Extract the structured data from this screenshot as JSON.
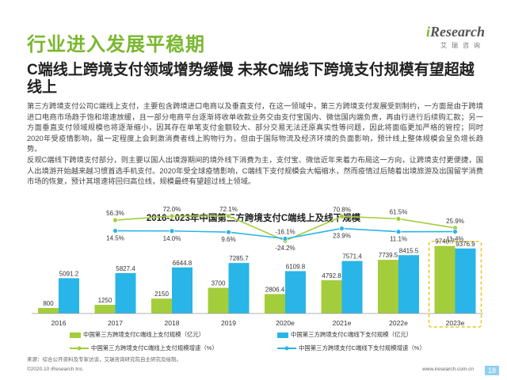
{
  "page_title": "行业进入发展平稳期",
  "logo": {
    "brand_i": "i",
    "brand_rest": "Research",
    "sub": "艾瑞咨询"
  },
  "headline": "C端线上跨境支付领域增势缓慢 未来C端线下跨境支付规模有望超越线上",
  "body_paragraphs": [
    "第三方跨境支付公司C端线上支付，主要包含跨境进口电商以及垂直支付，在这一领域中，第三方跨境支付发展受到制约，一方面是由于跨境进口电商市场趋于饱和增速放缓，且一部分电商平台逐渐将收单收款业务交由支付宝国内、微信国内端负责，再由行进行后续购汇款；另一方面垂直支付领域规模也将逐渐缩小，因其存在单笔支付金额较大、部分交易无法还原真实性等问题，因此将面临更加严格的管控；同时2020年受疫情影响，虽一定程度上会刺激消费者线上购物行为，但由于国际物流及经济环境的负面影响，预计线上整体规模会呈负增长趋势。",
    "反观C端线下跨境支付部分，则主要以国人出境游期间的境外线下消费为主，支付宝、微信近年来着力布局这一方向，让跨境支付更便捷，国人出境游开始越来越习惯首选手机支付。2020年受全球疫情影响，C端线下支付规模会大幅缩水，然而疫情过后随着出境旅游及出国留学消费市场的恢复，预计其增速将回归高位线，规模最终有望超过线上领域。"
  ],
  "colors": {
    "green": "#a3cd3b",
    "blue": "#29b5e8",
    "title_green": "#7ab72f",
    "dashed": "#e8c51b"
  },
  "chart_data": {
    "type": "bar",
    "title": "2016-2023年中国第三方跨境支付C端线上及线下规模",
    "categories": [
      "2016",
      "2017",
      "2018",
      "2019",
      "2020e",
      "2021e",
      "2022e",
      "2023e"
    ],
    "series": [
      {
        "name": "中国第三方跨境支付C端线上支付规模（亿元）",
        "type": "bar",
        "values": [
          800,
          1250,
          2150,
          3700,
          2806.4,
          4792.8,
          7739.5,
          9740.7
        ]
      },
      {
        "name": "中国第三方跨境支付C端线下支付规模（亿元）",
        "type": "bar",
        "values": [
          5091.2,
          5827.4,
          6644.8,
          7285.7,
          6109.8,
          7571.4,
          8415.5,
          9376.9
        ]
      },
      {
        "name": "中国第三方跨境支付C端线上支付规模增速（%）",
        "type": "line",
        "values": [
          null,
          56.3,
          72.0,
          72.1,
          -24.2,
          70.8,
          61.5,
          25.9
        ],
        "labels": [
          "",
          "56.3%",
          "72.0%",
          "72.1%",
          "-24.2%",
          "70.8%",
          "61.5%",
          "25.9%"
        ]
      },
      {
        "name": "中国第三方跨境支付C端线下支付规模增速（%）",
        "type": "line",
        "values": [
          null,
          14.5,
          14.0,
          9.6,
          -16.1,
          23.9,
          11.1,
          11.4
        ],
        "labels": [
          "",
          "14.5%",
          "14.0%",
          "9.6%",
          "-16.1%",
          "23.9%",
          "11.1%",
          "11.4%"
        ]
      }
    ],
    "bar_labels_online": [
      "800",
      "1250",
      "2150",
      "3700",
      "2806.4",
      "4792.8",
      "7739.5",
      "9740.7"
    ],
    "bar_labels_offline": [
      "5091.2",
      "5827.4",
      "6644.8",
      "7285.7",
      "6109.8",
      "7571.4",
      "8415.5",
      "9376.9"
    ],
    "highlight_category": "2023e",
    "legend_position": "bottom"
  },
  "footnote": "来源：综合公开资料及专家访谈，艾瑞咨询研究院自主研究及绘制。",
  "footer_left": "©2020.10 iResearch Inc.",
  "footer_right": "www.iresearch.com.cn",
  "page_number": "18"
}
